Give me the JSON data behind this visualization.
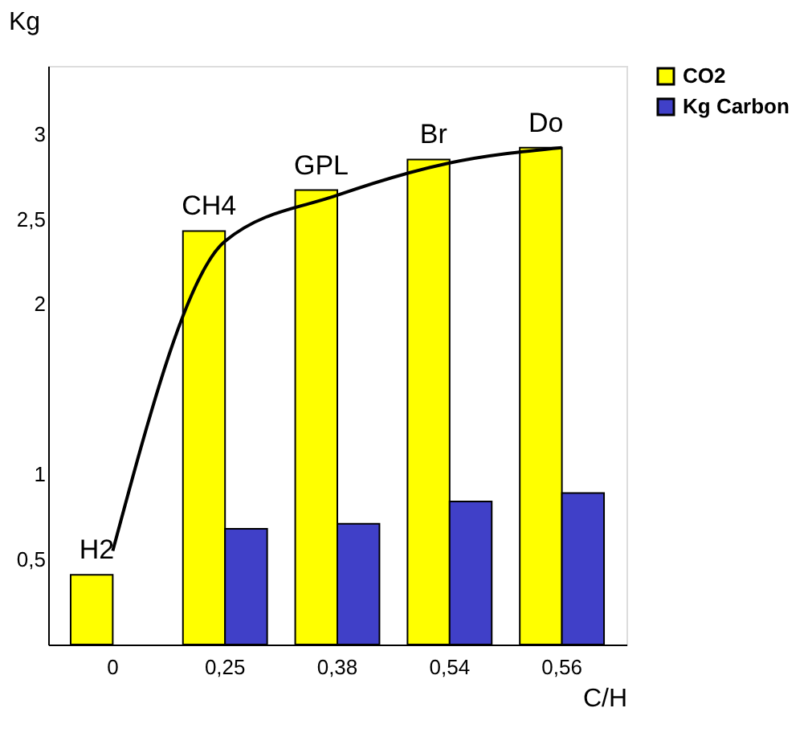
{
  "chart_data": {
    "type": "bar",
    "xlabel": "C/H",
    "ylabel": "Kg",
    "categories": [
      "0",
      "0,25",
      "0,38",
      "0,54",
      "0,56"
    ],
    "series": [
      {
        "name": "CO2",
        "color": "#ffff00",
        "values": [
          0.41,
          2.43,
          2.67,
          2.85,
          2.92
        ]
      },
      {
        "name": "Kg Carbon",
        "color": "#4040c8",
        "values": [
          null,
          0.68,
          0.71,
          0.84,
          0.89
        ]
      },
      {
        "type": "line",
        "color": "#000000",
        "values": [
          0.55,
          2.37,
          2.64,
          2.83,
          2.92
        ]
      }
    ],
    "ylim": [
      0,
      3.4
    ],
    "yticks": [
      {
        "value": 0.5,
        "label": "0,5"
      },
      1,
      2,
      {
        "value": 2.5,
        "label": "2,5"
      },
      3
    ],
    "annotations": [
      {
        "text": "H2",
        "x": "0",
        "y": 0.41
      },
      {
        "text": "CH4",
        "x": "0,25",
        "y": 2.43
      },
      {
        "text": "GPL",
        "x": "0,38",
        "y": 2.67
      },
      {
        "text": "Br",
        "x": "0,54",
        "y": 2.85
      },
      {
        "text": "Do",
        "x": "0,56",
        "y": 2.92
      }
    ],
    "legend": "top right",
    "grid": false,
    "marker": "none",
    "line_style": "solid"
  }
}
